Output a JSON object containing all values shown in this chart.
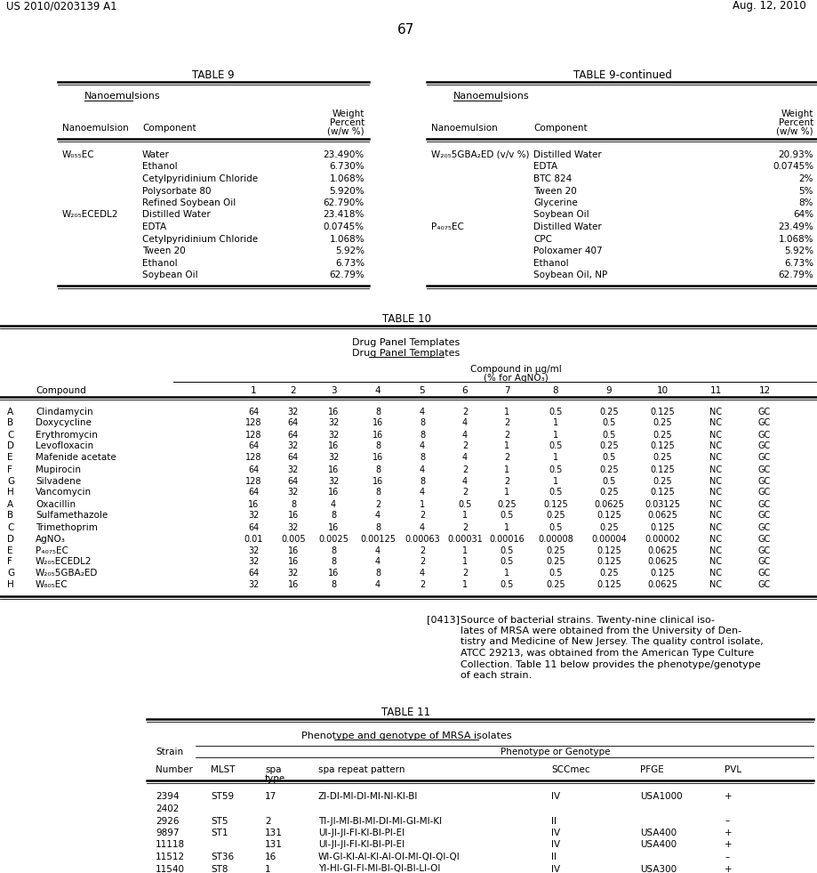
{
  "page_header_left": "US 2010/0203139 A1",
  "page_header_right": "Aug. 12, 2010",
  "page_number": "67",
  "background_color": "#ffffff",
  "table9_title": "TABLE 9",
  "table9_subtitle": "Nanoemulsions",
  "table9_data": [
    [
      "W₀₅₅EC",
      "Water",
      "23.490%"
    ],
    [
      "",
      "Ethanol",
      "6.730%"
    ],
    [
      "",
      "Cetylpyridinium Chloride",
      "1.068%"
    ],
    [
      "",
      "Polysorbate 80",
      "5.920%"
    ],
    [
      "",
      "Refined Soybean Oil",
      "62.790%"
    ],
    [
      "W₂₀₅ECEDL2",
      "Distilled Water",
      "23.418%"
    ],
    [
      "",
      "EDTA",
      "0.0745%"
    ],
    [
      "",
      "Cetylpyridinium Chloride",
      "1.068%"
    ],
    [
      "",
      "Tween 20",
      "5.92%"
    ],
    [
      "",
      "Ethanol",
      "6.73%"
    ],
    [
      "",
      "Soybean Oil",
      "62.79%"
    ]
  ],
  "table9c_title": "TABLE 9-continued",
  "table9c_subtitle": "Nanoemulsions",
  "table9c_data": [
    [
      "W₂₀₅5GBA₂ED (v/v %)",
      "Distilled Water",
      "20.93%"
    ],
    [
      "",
      "EDTA",
      "0.0745%"
    ],
    [
      "",
      "BTC 824",
      "2%"
    ],
    [
      "",
      "Tween 20",
      "5%"
    ],
    [
      "",
      "Glycerine",
      "8%"
    ],
    [
      "",
      "Soybean Oil",
      "64%"
    ],
    [
      "P₄₀₇₅EC",
      "Distilled Water",
      "23.49%"
    ],
    [
      "",
      "CPC",
      "1.068%"
    ],
    [
      "",
      "Poloxamer 407",
      "5.92%"
    ],
    [
      "",
      "Ethanol",
      "6.73%"
    ],
    [
      "",
      "Soybean Oil, NP",
      "62.79%"
    ]
  ],
  "table10_title": "TABLE 10",
  "table10_subtitle1": "Drug Panel Templates",
  "table10_subtitle2": "Drug Panel Templates",
  "table10_row_labels": [
    "A",
    "B",
    "C",
    "D",
    "E",
    "F",
    "G",
    "H",
    "A",
    "B",
    "C",
    "D",
    "E",
    "F",
    "G",
    "H"
  ],
  "table10_data": [
    [
      "Clindamycin",
      "64",
      "32",
      "16",
      "8",
      "4",
      "2",
      "1",
      "0.5",
      "0.25",
      "0.125",
      "NC",
      "GC"
    ],
    [
      "Doxycycline",
      "128",
      "64",
      "32",
      "16",
      "8",
      "4",
      "2",
      "1",
      "0.5",
      "0.25",
      "NC",
      "GC"
    ],
    [
      "Erythromycin",
      "128",
      "64",
      "32",
      "16",
      "8",
      "4",
      "2",
      "1",
      "0.5",
      "0.25",
      "NC",
      "GC"
    ],
    [
      "Levofloxacin",
      "64",
      "32",
      "16",
      "8",
      "4",
      "2",
      "1",
      "0.5",
      "0.25",
      "0.125",
      "NC",
      "GC"
    ],
    [
      "Mafenide acetate",
      "128",
      "64",
      "32",
      "16",
      "8",
      "4",
      "2",
      "1",
      "0.5",
      "0.25",
      "NC",
      "GC"
    ],
    [
      "Mupirocin",
      "64",
      "32",
      "16",
      "8",
      "4",
      "2",
      "1",
      "0.5",
      "0.25",
      "0.125",
      "NC",
      "GC"
    ],
    [
      "Silvadene",
      "128",
      "64",
      "32",
      "16",
      "8",
      "4",
      "2",
      "1",
      "0.5",
      "0.25",
      "NC",
      "GC"
    ],
    [
      "Vancomycin",
      "64",
      "32",
      "16",
      "8",
      "4",
      "2",
      "1",
      "0.5",
      "0.25",
      "0.125",
      "NC",
      "GC"
    ],
    [
      "Oxacillin",
      "16",
      "8",
      "4",
      "2",
      "1",
      "0.5",
      "0.25",
      "0.125",
      "0.0625",
      "0.03125",
      "NC",
      "GC"
    ],
    [
      "Sulfamethazole",
      "32",
      "16",
      "8",
      "4",
      "2",
      "1",
      "0.5",
      "0.25",
      "0.125",
      "0.0625",
      "NC",
      "GC"
    ],
    [
      "Trimethoprim",
      "64",
      "32",
      "16",
      "8",
      "4",
      "2",
      "1",
      "0.5",
      "0.25",
      "0.125",
      "NC",
      "GC"
    ],
    [
      "AgNO₃",
      "0.01",
      "0.005",
      "0.0025",
      "0.00125",
      "0.00063",
      "0.00031",
      "0.00016",
      "0.00008",
      "0.00004",
      "0.00002",
      "NC",
      "GC"
    ],
    [
      "P₄₀₇₅EC",
      "32",
      "16",
      "8",
      "4",
      "2",
      "1",
      "0.5",
      "0.25",
      "0.125",
      "0.0625",
      "NC",
      "GC"
    ],
    [
      "W₂₀₅ECEDL2",
      "32",
      "16",
      "8",
      "4",
      "2",
      "1",
      "0.5",
      "0.25",
      "0.125",
      "0.0625",
      "NC",
      "GC"
    ],
    [
      "W₂₀₅5GBA₂ED",
      "64",
      "32",
      "16",
      "8",
      "4",
      "2",
      "1",
      "0.5",
      "0.25",
      "0.125",
      "NC",
      "GC"
    ],
    [
      "W₈₀₅EC",
      "32",
      "16",
      "8",
      "4",
      "2",
      "1",
      "0.5",
      "0.25",
      "0.125",
      "0.0625",
      "NC",
      "GC"
    ]
  ],
  "paragraph_label": "[0413]",
  "paragraph_lines": [
    "Source of bacterial strains. Twenty-nine clinical iso-",
    "lates of MRSA were obtained from the University of Den-",
    "tistry and Medicine of New Jersey. The quality control isolate,",
    "ATCC 29213, was obtained from the American Type Culture",
    "Collection. Table 11 below provides the phenotype/genotype",
    "of each strain."
  ],
  "table11_title": "TABLE 11",
  "table11_subtitle": "Phenotype and genotype of MRSA isolates",
  "table11_subheader": "Phenotype or Genotype",
  "table11_col_headers": [
    "Number",
    "MLST",
    "spa\ntype",
    "spa repeat pattern",
    "SCCmec",
    "PFGE",
    "PVL"
  ],
  "table11_data": [
    [
      "2394",
      "ST59",
      "17",
      "ZI-DI-MI-DI-MI-NI-KI-BI",
      "IV",
      "USA1000",
      "+"
    ],
    [
      "2402",
      "",
      "",
      "",
      "",
      "",
      ""
    ],
    [
      "2926",
      "ST5",
      "2",
      "TI-JI-MI-BI-MI-DI-MI-GI-MI-KI",
      "II",
      "",
      "–"
    ],
    [
      "9897",
      "ST1",
      "131",
      "UI-JI-JI-FI-KI-BI-PI-EI",
      "IV",
      "USA400",
      "+"
    ],
    [
      "11118",
      "",
      "131",
      "UI-JI-JI-FI-KI-BI-PI-EI",
      "IV",
      "USA400",
      "+"
    ],
    [
      "11512",
      "ST36",
      "16",
      "WI-GI-KI-AI-KI-AI-OI-MI-QI-QI-QI",
      "II",
      "",
      "–"
    ],
    [
      "11540",
      "ST8",
      "1",
      "YI-HI-GI-FI-MI-BI-QI-BI-LI-OI",
      "IV",
      "USA300",
      "+"
    ]
  ]
}
